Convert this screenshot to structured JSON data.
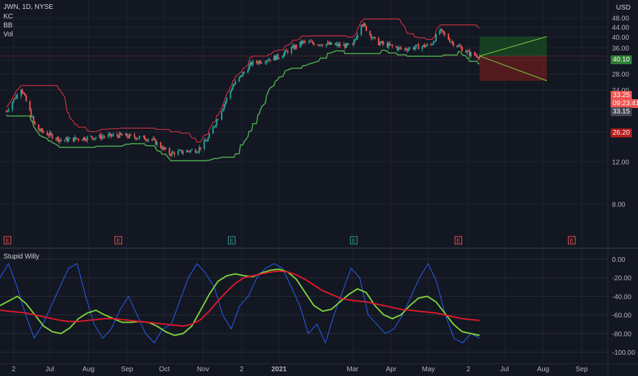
{
  "header": {
    "symbol_line": "JWN, 1D, NYSE",
    "indicators": [
      "KC",
      "BB",
      "Vol"
    ],
    "currency": "USD"
  },
  "oscillator": {
    "title": "Stupid Willy"
  },
  "price_tags": {
    "target": "40.10",
    "current": "33.25",
    "countdown": "09:23:41",
    "secondary": "33.15",
    "stop": "26.20"
  },
  "colors": {
    "background": "#131722",
    "candle_up": "#26a69a",
    "candle_down": "#ef5350",
    "upper_band": "#f23645",
    "lower_band": "#4caf50",
    "oscillator_line": "#2962ff",
    "signal_green": "#7cd33a",
    "signal_red": "#e0182d",
    "profit_zone": "#1b5e20",
    "loss_zone": "#7f1d1d"
  },
  "chart_data": [
    {
      "type": "candlestick",
      "title": "JWN, 1D, NYSE",
      "ylabel": "USD",
      "y_ticks": [
        "48.00",
        "44.00",
        "40.00",
        "36.00",
        "32.00",
        "28.00",
        "24.00",
        "20.00",
        "16.00",
        "12.00",
        "8.00"
      ],
      "x_ticks": [
        "2",
        "Jul",
        "Aug",
        "Sep",
        "Oct",
        "Nov",
        "2",
        "2021",
        "Mar",
        "Apr",
        "May",
        "2",
        "Jul",
        "Aug",
        "Sep"
      ],
      "ylim": [
        6,
        50
      ],
      "scale": "log",
      "trend_path": [
        {
          "date": "2020-05-27",
          "close": 19.5
        },
        {
          "date": "2020-06-08",
          "close": 24.5
        },
        {
          "date": "2020-06-20",
          "close": 16.5
        },
        {
          "date": "2020-07-10",
          "close": 14.8
        },
        {
          "date": "2020-08-05",
          "close": 15.2
        },
        {
          "date": "2020-08-25",
          "close": 15.5
        },
        {
          "date": "2020-09-20",
          "close": 15.0
        },
        {
          "date": "2020-10-05",
          "close": 13.0
        },
        {
          "date": "2020-10-28",
          "close": 13.5
        },
        {
          "date": "2020-11-05",
          "close": 15.0
        },
        {
          "date": "2020-11-25",
          "close": 25.0
        },
        {
          "date": "2020-12-10",
          "close": 31.0
        },
        {
          "date": "2020-12-31",
          "close": 33.0
        },
        {
          "date": "2021-01-20",
          "close": 38.0
        },
        {
          "date": "2021-02-15",
          "close": 37.0
        },
        {
          "date": "2021-03-01",
          "close": 36.5
        },
        {
          "date": "2021-03-08",
          "close": 46.0
        },
        {
          "date": "2021-03-20",
          "close": 38.0
        },
        {
          "date": "2021-04-10",
          "close": 35.5
        },
        {
          "date": "2021-05-03",
          "close": 37.0
        },
        {
          "date": "2021-05-10",
          "close": 42.5
        },
        {
          "date": "2021-05-20",
          "close": 38.0
        },
        {
          "date": "2021-06-03",
          "close": 34.0
        },
        {
          "date": "2021-06-11",
          "close": 33.25
        }
      ],
      "position_tool": {
        "entry": 33.25,
        "target": 40.1,
        "stop": 26.2,
        "start_date": "2021-06-11",
        "end_date": "2021-08-04"
      },
      "earnings_markers": [
        "E",
        "E",
        "E",
        "E",
        "E",
        "E"
      ]
    },
    {
      "type": "line",
      "title": "Stupid Willy",
      "y_ticks": [
        "0.00",
        "-20.00",
        "-40.00",
        "-60.00",
        "-80.00",
        "-100.00"
      ],
      "ylim": [
        -105,
        5
      ],
      "series": [
        {
          "name": "",
          "values": [
            -20,
            -5,
            -30,
            -60,
            -85,
            -70,
            -50,
            -30,
            -10,
            -5,
            -40,
            -70,
            -85,
            -75,
            -55,
            -40,
            -60,
            -80,
            -90,
            -75,
            -70,
            -45,
            -20,
            -5,
            -15,
            -30,
            -60,
            -75,
            -50,
            -40,
            -20,
            -10,
            -5,
            -10,
            -30,
            -50,
            -80,
            -70,
            -90,
            -60,
            -35,
            -10,
            -20,
            -60,
            -70,
            -80,
            -75,
            -60,
            -40,
            -20,
            -5,
            -25,
            -60,
            -85,
            -90,
            -80,
            -85
          ]
        },
        {
          "name": "",
          "values": [
            -50,
            -45,
            -40,
            -48,
            -60,
            -72,
            -78,
            -80,
            -74,
            -64,
            -58,
            -55,
            -60,
            -64,
            -68,
            -68,
            -67,
            -68,
            -72,
            -78,
            -82,
            -80,
            -72,
            -55,
            -38,
            -24,
            -18,
            -16,
            -18,
            -19,
            -15,
            -12,
            -11,
            -14,
            -22,
            -36,
            -50,
            -56,
            -54,
            -46,
            -38,
            -32,
            -36,
            -50,
            -60,
            -64,
            -60,
            -50,
            -42,
            -40,
            -46,
            -58,
            -70,
            -78,
            -80,
            -82
          ]
        },
        {
          "name": "",
          "values": [
            -55,
            -56,
            -57,
            -58,
            -60,
            -62,
            -64,
            -66,
            -67,
            -67,
            -66,
            -65,
            -64,
            -64,
            -65,
            -66,
            -67,
            -68,
            -69,
            -70,
            -71,
            -72,
            -70,
            -65,
            -56,
            -45,
            -35,
            -26,
            -20,
            -18,
            -16,
            -14,
            -13,
            -14,
            -17,
            -22,
            -28,
            -34,
            -38,
            -42,
            -44,
            -45,
            -46,
            -48,
            -50,
            -52,
            -54,
            -55,
            -56,
            -57,
            -58,
            -60,
            -62,
            -64,
            -65,
            -66
          ]
        }
      ]
    }
  ]
}
